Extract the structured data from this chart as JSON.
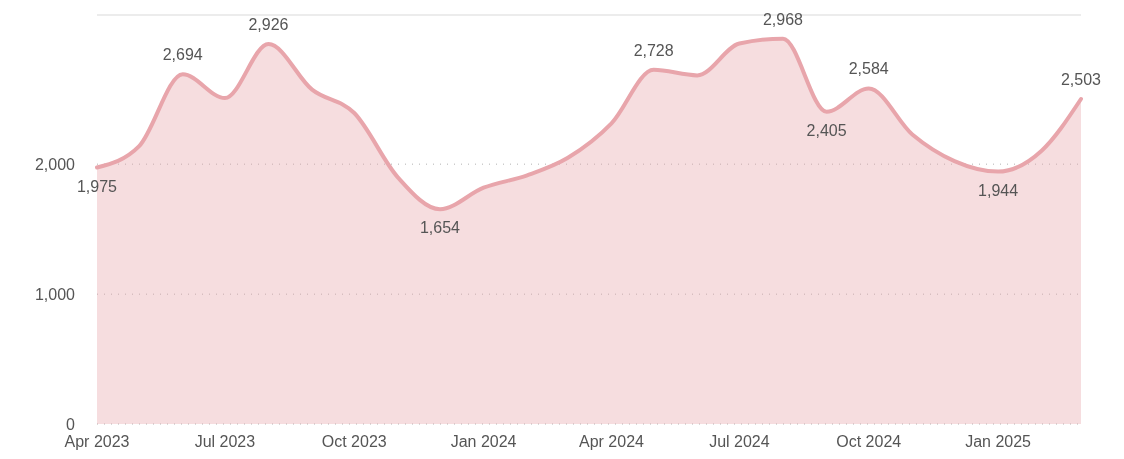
{
  "chart_data": {
    "type": "area",
    "x": [
      "2023-04",
      "2023-05",
      "2023-06",
      "2023-07",
      "2023-08",
      "2023-09",
      "2023-10",
      "2023-11",
      "2023-12",
      "2024-01",
      "2024-02",
      "2024-03",
      "2024-04",
      "2024-05",
      "2024-06",
      "2024-07",
      "2024-08",
      "2024-09",
      "2024-10",
      "2024-11",
      "2024-12",
      "2025-01",
      "2025-02",
      "2025-03"
    ],
    "series": [
      {
        "color": "#e8a5ab",
        "values": [
          1975,
          2140,
          2694,
          2510,
          2926,
          2575,
          2395,
          1900,
          1654,
          1820,
          1915,
          2050,
          2315,
          2728,
          2685,
          2930,
          2968,
          2405,
          2584,
          2230,
          2025,
          1944,
          2105,
          2503
        ],
        "value_labels": [
          "1,975",
          null,
          "2,694",
          null,
          "2,926",
          null,
          null,
          null,
          "1,654",
          null,
          null,
          null,
          null,
          "2,728",
          null,
          null,
          "2,968",
          "2,405",
          "2,584",
          null,
          null,
          "1,944",
          null,
          "2,503"
        ]
      }
    ],
    "xlim": [
      "2023-04",
      "2025-03"
    ],
    "xticks": [
      {
        "value": "2023-04",
        "label": "Apr 2023"
      },
      {
        "value": "2023-07",
        "label": "Jul 2023"
      },
      {
        "value": "2023-10",
        "label": "Oct 2023"
      },
      {
        "value": "2024-01",
        "label": "Jan 2024"
      },
      {
        "value": "2024-04",
        "label": "Apr 2024"
      },
      {
        "value": "2024-07",
        "label": "Jul 2024"
      },
      {
        "value": "2024-10",
        "label": "Oct 2024"
      },
      {
        "value": "2025-01",
        "label": "Jan 2025"
      }
    ],
    "ylim": [
      0,
      3150
    ],
    "yticks": [
      {
        "value": 0,
        "label": "0"
      },
      {
        "value": 1000,
        "label": "1,000"
      },
      {
        "value": 2000,
        "label": "2,000"
      }
    ],
    "grid": "y"
  }
}
